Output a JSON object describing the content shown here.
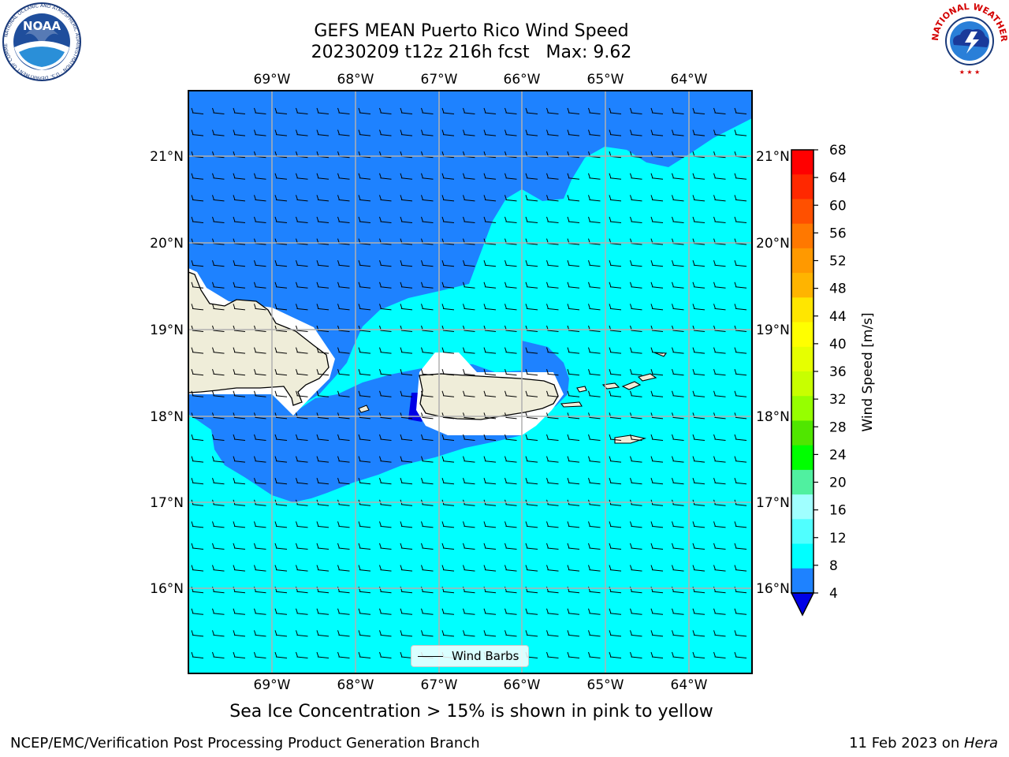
{
  "title": {
    "line1": "GEFS MEAN Puerto Rico Wind Speed",
    "line2": "20230209 t12z 216h fcst   Max: 9.62"
  },
  "map": {
    "lon_ticks": [
      "69°W",
      "68°W",
      "67°W",
      "66°W",
      "65°W",
      "64°W"
    ],
    "lat_ticks": [
      "21°N",
      "20°N",
      "19°N",
      "18°N",
      "17°N",
      "16°N"
    ],
    "lon_range": [
      -70.0,
      -63.25
    ],
    "lat_range": [
      15.0,
      21.75
    ],
    "land_color": "#efedd9",
    "ocean_colors": {
      "4-8": "#1e82ff",
      "8-12": "#00ffff",
      "below-4": "#0000e6"
    },
    "legend_label": "Wind Barbs"
  },
  "colorbar": {
    "label": "Wind Speed [m/s]",
    "ticks": [
      "68",
      "64",
      "60",
      "56",
      "52",
      "48",
      "44",
      "40",
      "36",
      "32",
      "28",
      "24",
      "20",
      "16",
      "12",
      "8",
      "4"
    ],
    "colors_top_to_bottom": [
      "#ff0000",
      "#ff2800",
      "#ff5000",
      "#ff7800",
      "#ff9900",
      "#ffb400",
      "#ffe600",
      "#ffff00",
      "#e6ff00",
      "#c8ff00",
      "#96ff00",
      "#50e600",
      "#00ff00",
      "#50f0a0",
      "#a0ffff",
      "#50ffff",
      "#00ffff",
      "#1e82ff"
    ],
    "extend_color": "#0000e6"
  },
  "caption": "Sea Ice Concentration > 15% is shown in pink to yellow",
  "footer": {
    "left": "NCEP/EMC/Verification Post Processing Product Generation Branch",
    "date": "11 Feb 2023 on ",
    "machine": "Hera"
  },
  "logos": {
    "noaa": {
      "text": "NOAA",
      "icon": "noaa-logo-icon"
    },
    "nws": {
      "text": "NATIONAL WEATHER SERVICE",
      "icon": "nws-logo-icon"
    }
  }
}
